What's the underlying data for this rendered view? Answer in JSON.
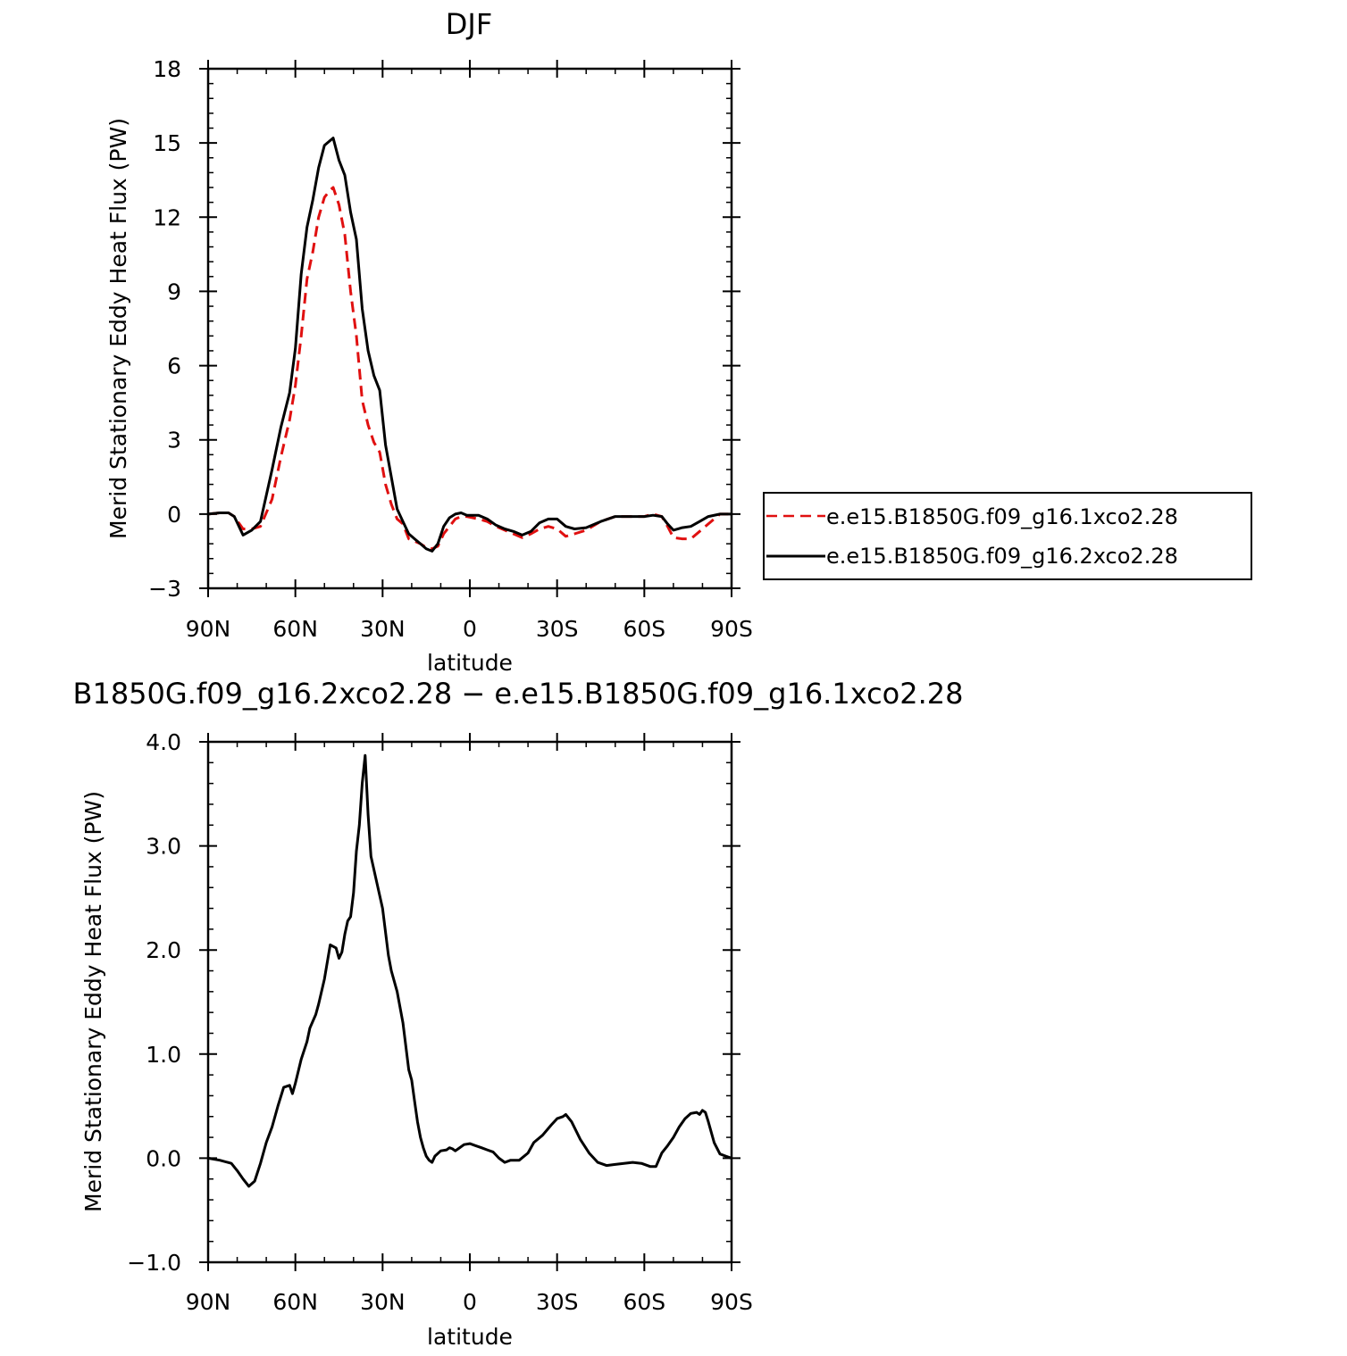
{
  "chart_data": [
    {
      "type": "line",
      "title": "DJF",
      "xlabel": "latitude",
      "ylabel": "Merid Stationary Eddy Heat Flux (PW)",
      "xlim": [
        90,
        -90
      ],
      "ylim": [
        -3,
        18
      ],
      "xticks": [
        90,
        60,
        30,
        0,
        -30,
        -60,
        -90
      ],
      "xtick_labels": [
        "90N",
        "60N",
        "30N",
        "0",
        "30S",
        "60S",
        "90S"
      ],
      "yticks": [
        -3,
        0,
        3,
        6,
        9,
        12,
        15,
        18
      ],
      "ytick_labels": [
        "−3",
        "0",
        "3",
        "6",
        "9",
        "12",
        "15",
        "18"
      ],
      "legend_position": "right",
      "series": [
        {
          "name": "e.e15.B1850G.f09_g16.1xco2.28",
          "color": "#e01010",
          "dash": "dashed",
          "x": [
            90,
            86,
            83,
            81,
            78,
            75,
            72,
            68,
            65,
            62,
            60,
            58,
            56,
            54,
            52,
            50,
            48,
            47,
            45,
            43,
            41,
            39,
            37,
            35,
            33,
            31,
            29,
            27,
            25,
            23,
            21,
            19,
            17,
            15,
            13,
            11,
            9,
            7,
            5,
            3,
            1,
            -1,
            -3,
            -6,
            -9,
            -12,
            -15,
            -18,
            -21,
            -24,
            -27,
            -30,
            -33,
            -36,
            -40,
            -45,
            -50,
            -55,
            -60,
            -63,
            -66,
            -68,
            -70,
            -73,
            -76,
            -79,
            -82,
            -86,
            -90
          ],
          "y": [
            0,
            0.05,
            0.05,
            -0.1,
            -0.6,
            -0.6,
            -0.5,
            0.6,
            2.3,
            3.8,
            5.2,
            7.2,
            9.5,
            10.6,
            12.0,
            12.8,
            13.1,
            13.2,
            12.5,
            11.3,
            9.0,
            7.2,
            4.6,
            3.6,
            2.9,
            2.5,
            1.2,
            0.4,
            -0.2,
            -0.4,
            -1.0,
            -1.1,
            -1.2,
            -1.35,
            -1.4,
            -1.3,
            -0.8,
            -0.5,
            -0.2,
            -0.1,
            -0.1,
            -0.15,
            -0.2,
            -0.3,
            -0.5,
            -0.65,
            -0.8,
            -0.95,
            -0.8,
            -0.6,
            -0.5,
            -0.6,
            -0.9,
            -0.8,
            -0.65,
            -0.3,
            -0.1,
            -0.1,
            -0.1,
            0.0,
            -0.1,
            -0.5,
            -0.95,
            -1.0,
            -1.0,
            -0.7,
            -0.4,
            0.0,
            0.0
          ]
        },
        {
          "name": "e.e15.B1850G.f09_g16.2xco2.28",
          "color": "#000000",
          "dash": "solid",
          "x": [
            90,
            86,
            83,
            81,
            78,
            75,
            72,
            68,
            65,
            62,
            60,
            58,
            56,
            54,
            52,
            50,
            48,
            47,
            45,
            43,
            41,
            39,
            37,
            35,
            33,
            31,
            29,
            27,
            25,
            23,
            21,
            19,
            17,
            15,
            13,
            11,
            9,
            7,
            5,
            3,
            1,
            -1,
            -3,
            -6,
            -9,
            -12,
            -15,
            -18,
            -21,
            -24,
            -27,
            -30,
            -33,
            -36,
            -40,
            -45,
            -50,
            -55,
            -60,
            -63,
            -66,
            -68,
            -70,
            -73,
            -76,
            -79,
            -82,
            -86,
            -90
          ],
          "y": [
            0,
            0.05,
            0.05,
            -0.1,
            -0.85,
            -0.65,
            -0.3,
            1.8,
            3.5,
            4.9,
            6.7,
            9.7,
            11.6,
            12.7,
            14.0,
            14.9,
            15.1,
            15.2,
            14.3,
            13.7,
            12.2,
            11.1,
            8.3,
            6.6,
            5.6,
            5.0,
            2.8,
            1.5,
            0.2,
            -0.3,
            -0.8,
            -1.0,
            -1.2,
            -1.4,
            -1.5,
            -1.2,
            -0.5,
            -0.15,
            0.0,
            0.05,
            -0.05,
            -0.05,
            -0.05,
            -0.2,
            -0.45,
            -0.6,
            -0.7,
            -0.85,
            -0.7,
            -0.35,
            -0.2,
            -0.2,
            -0.5,
            -0.6,
            -0.55,
            -0.3,
            -0.1,
            -0.1,
            -0.1,
            -0.05,
            -0.1,
            -0.4,
            -0.65,
            -0.55,
            -0.5,
            -0.3,
            -0.1,
            0.0,
            0.0
          ]
        }
      ]
    },
    {
      "type": "line",
      "title": "B1850G.f09_g16.2xco2.28 − e.e15.B1850G.f09_g16.1xco2.28",
      "xlabel": "latitude",
      "ylabel": "Merid Stationary Eddy Heat Flux (PW)",
      "xlim": [
        90,
        -90
      ],
      "ylim": [
        -1.0,
        4.0
      ],
      "xticks": [
        90,
        60,
        30,
        0,
        -30,
        -60,
        -90
      ],
      "xtick_labels": [
        "90N",
        "60N",
        "30N",
        "0",
        "30S",
        "60S",
        "90S"
      ],
      "yticks": [
        -1.0,
        0.0,
        1.0,
        2.0,
        3.0,
        4.0
      ],
      "ytick_labels": [
        "−1.0",
        "0.0",
        "1.0",
        "2.0",
        "3.0",
        "4.0"
      ],
      "series": [
        {
          "color": "#000000",
          "dash": "solid",
          "x": [
            90,
            86,
            82,
            80,
            78,
            76,
            74,
            72,
            70,
            68,
            66,
            64,
            62,
            61,
            60,
            58,
            56,
            55,
            53,
            52,
            50,
            48,
            46,
            45,
            44,
            43,
            42,
            41,
            40,
            39,
            38,
            37,
            36,
            35,
            34,
            32,
            30,
            28,
            27,
            25,
            23,
            21,
            20,
            19,
            18,
            17,
            16,
            15,
            14,
            13,
            12,
            10,
            8,
            7,
            6,
            5,
            4,
            2,
            0,
            -2,
            -4,
            -6,
            -8,
            -10,
            -12,
            -14,
            -17,
            -20,
            -22,
            -25,
            -28,
            -30,
            -32,
            -33,
            -35,
            -38,
            -41,
            -44,
            -47,
            -50,
            -53,
            -56,
            -59,
            -62,
            -64,
            -66,
            -68,
            -70,
            -72,
            -74,
            -76,
            -78,
            -79,
            -80,
            -81,
            -82,
            -84,
            -86,
            -88,
            -90
          ],
          "y": [
            0,
            -0.02,
            -0.05,
            -0.12,
            -0.2,
            -0.27,
            -0.22,
            -0.05,
            0.15,
            0.3,
            0.5,
            0.68,
            0.7,
            0.62,
            0.72,
            0.95,
            1.12,
            1.25,
            1.38,
            1.48,
            1.72,
            2.05,
            2.02,
            1.92,
            1.98,
            2.15,
            2.28,
            2.32,
            2.55,
            2.95,
            3.2,
            3.6,
            3.87,
            3.3,
            2.9,
            2.65,
            2.4,
            1.95,
            1.8,
            1.6,
            1.3,
            0.85,
            0.75,
            0.55,
            0.35,
            0.2,
            0.1,
            0.02,
            -0.02,
            -0.04,
            0.02,
            0.07,
            0.08,
            0.1,
            0.09,
            0.07,
            0.09,
            0.13,
            0.14,
            0.12,
            0.1,
            0.08,
            0.06,
            0.0,
            -0.04,
            -0.02,
            -0.02,
            0.05,
            0.15,
            0.22,
            0.32,
            0.38,
            0.4,
            0.42,
            0.35,
            0.18,
            0.05,
            -0.04,
            -0.07,
            -0.06,
            -0.05,
            -0.04,
            -0.05,
            -0.08,
            -0.08,
            0.05,
            0.12,
            0.2,
            0.3,
            0.38,
            0.43,
            0.44,
            0.42,
            0.46,
            0.44,
            0.35,
            0.15,
            0.04,
            0.02,
            0.0
          ]
        }
      ]
    }
  ]
}
